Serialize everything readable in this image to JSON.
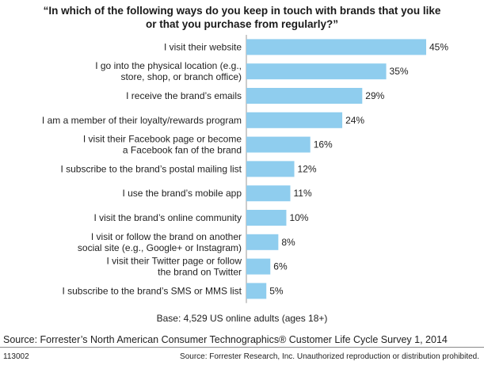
{
  "chart_data": {
    "type": "bar",
    "orientation": "horizontal",
    "title_lines": [
      "“In which of the following ways do you keep in touch with brands that you like",
      "or that you purchase from regularly?”"
    ],
    "categories": [
      [
        "I visit their website"
      ],
      [
        "I go into the physical location (e.g.,",
        "store, shop, or branch office)"
      ],
      [
        "I receive the brand’s emails"
      ],
      [
        "I am a member of their loyalty/rewards program"
      ],
      [
        "I visit their Facebook page or become",
        "a Facebook fan of the brand"
      ],
      [
        "I subscribe to the brand’s postal mailing list"
      ],
      [
        "I use the brand’s mobile app"
      ],
      [
        "I visit the brand’s online community"
      ],
      [
        "I visit or follow the brand on another",
        "social site (e.g., Google+ or Instagram)"
      ],
      [
        "I visit their Twitter page or follow",
        "the brand on Twitter"
      ],
      [
        "I subscribe to the brand’s SMS or MMS list"
      ]
    ],
    "values": [
      45,
      35,
      29,
      24,
      16,
      12,
      11,
      10,
      8,
      6,
      5
    ],
    "value_labels": [
      "45%",
      "35%",
      "29%",
      "24%",
      "16%",
      "12%",
      "11%",
      "10%",
      "8%",
      "6%",
      "5%"
    ],
    "unit": "%",
    "xlim": [
      0,
      45
    ],
    "grid": false,
    "bar_color": "#8fcdee"
  },
  "base_note": "Base: 4,529 US online adults (ages 18+)",
  "source": "Source: Forrester’s North American Consumer Technographics® Customer Life Cycle Survey 1, 2014",
  "footer": {
    "code": "113002",
    "copyright": "Source: Forrester Research, Inc. Unauthorized reproduction or distribution prohibited."
  }
}
